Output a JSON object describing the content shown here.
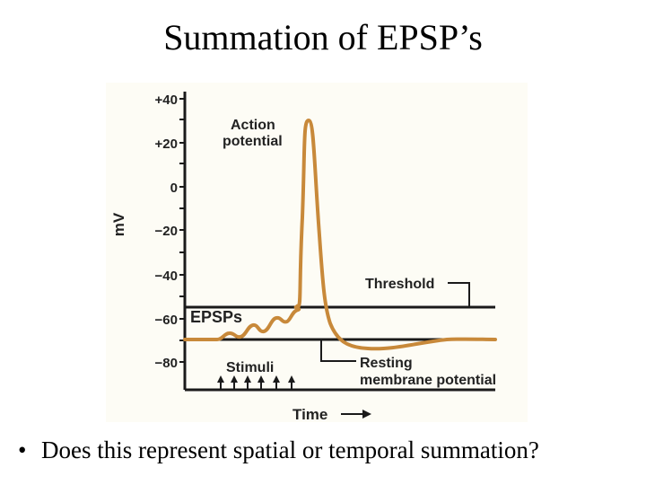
{
  "title": "Summation of EPSP’s",
  "bullet": "Does this represent spatial or temporal summation?",
  "diagram": {
    "y_axis_label": "mV",
    "x_axis_label": "Time",
    "ticks": [
      "+40",
      "+20",
      "0",
      "−20",
      "−40",
      "−60",
      "−80"
    ],
    "labels": {
      "action_potential_line1": "Action",
      "action_potential_line2": "potential",
      "threshold": "Threshold",
      "epsps": "EPSPs",
      "stimuli": "Stimuli",
      "resting_line1": "Resting",
      "resting_line2": "membrane potential"
    },
    "stimulus_arrow_count": 6,
    "colors": {
      "trace": "#c8893a",
      "lines": "#1a1a1a",
      "background": "#fdfcf5"
    }
  }
}
